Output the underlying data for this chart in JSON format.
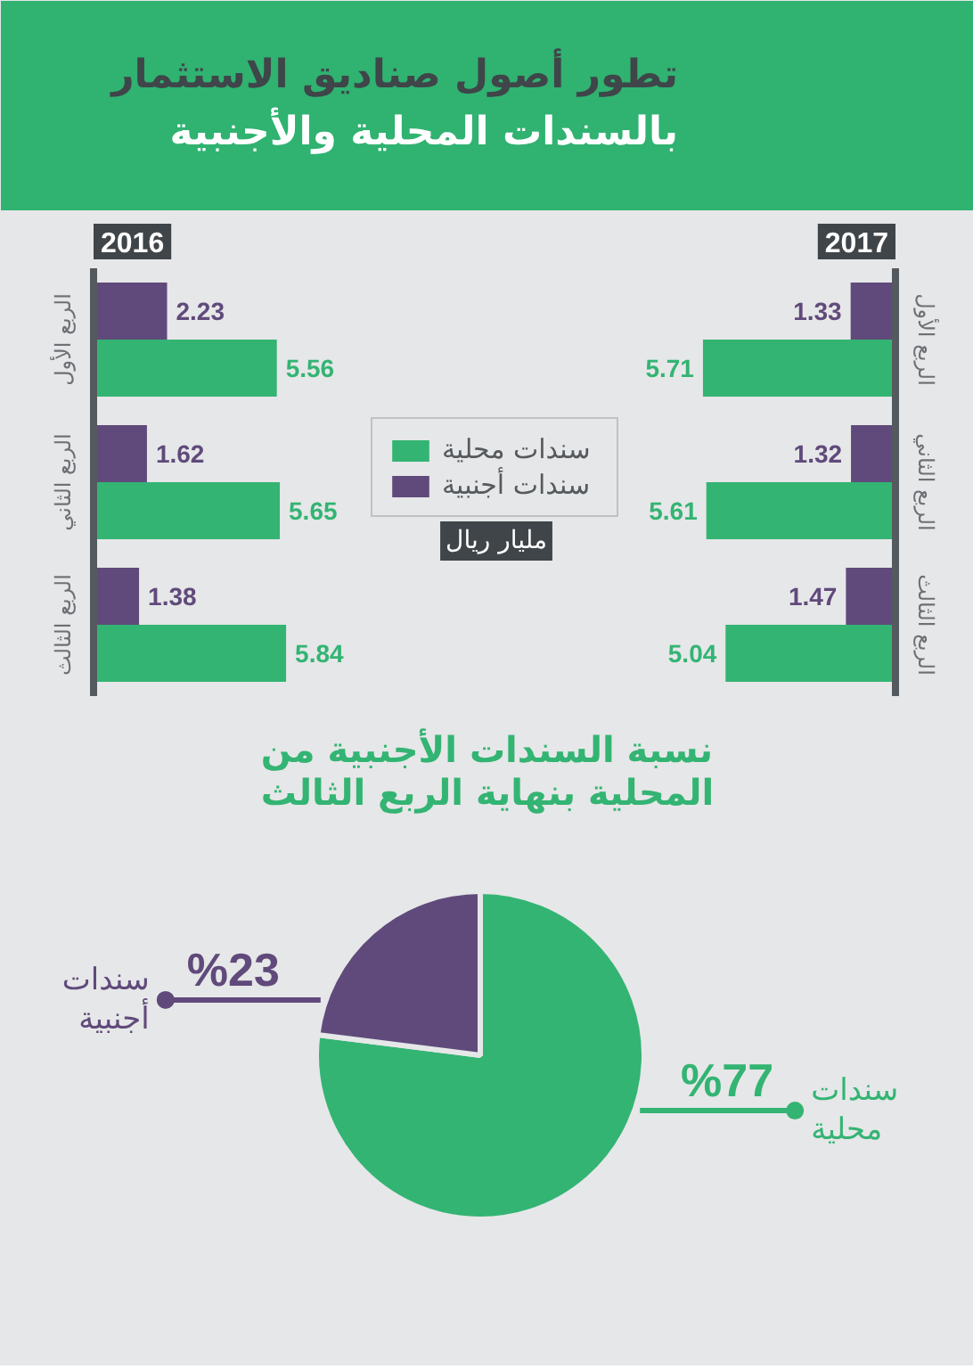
{
  "chart_data": [
    {
      "type": "other",
      "title": "تطور أصول صناديق الاستثمار بالسندات المحلية والأجنبية"
    },
    {
      "type": "bar",
      "orientation": "horizontal",
      "title": "2016",
      "categories": [
        "الربع الأول",
        "الربع الثاني",
        "الربع الثالث"
      ],
      "series": [
        {
          "name": "سندات محلية",
          "color": "#33b473",
          "values": [
            5.56,
            5.65,
            5.84
          ]
        },
        {
          "name": "سندات أجنبية",
          "color": "#604a7b",
          "values": [
            2.23,
            1.62,
            1.38
          ]
        }
      ],
      "tick_labels": "y",
      "data_labels": true,
      "legend": "right",
      "annotations": [
        "مليار ريال"
      ]
    },
    {
      "type": "bar",
      "orientation": "horizontal",
      "title": "2017",
      "categories": [
        "الربع الأول",
        "الربع الثاني",
        "الربع الثالث"
      ],
      "series": [
        {
          "color": "#33b473",
          "values": [
            5.71,
            5.61,
            5.04
          ]
        },
        {
          "color": "#604a7b",
          "values": [
            1.33,
            1.32,
            1.47
          ]
        }
      ],
      "tick_labels": "y",
      "data_labels": true
    },
    {
      "type": "pie",
      "title": "نسبة السندات الأجنبية من المحلية بنهاية الربع الثالث",
      "categories": [
        "سندات محلية",
        "سندات أجنبية"
      ],
      "values": [
        77,
        23
      ],
      "colors": [
        "#33b473",
        "#604a7b"
      ],
      "value_labels": [
        "%77",
        "%23"
      ]
    }
  ]
}
